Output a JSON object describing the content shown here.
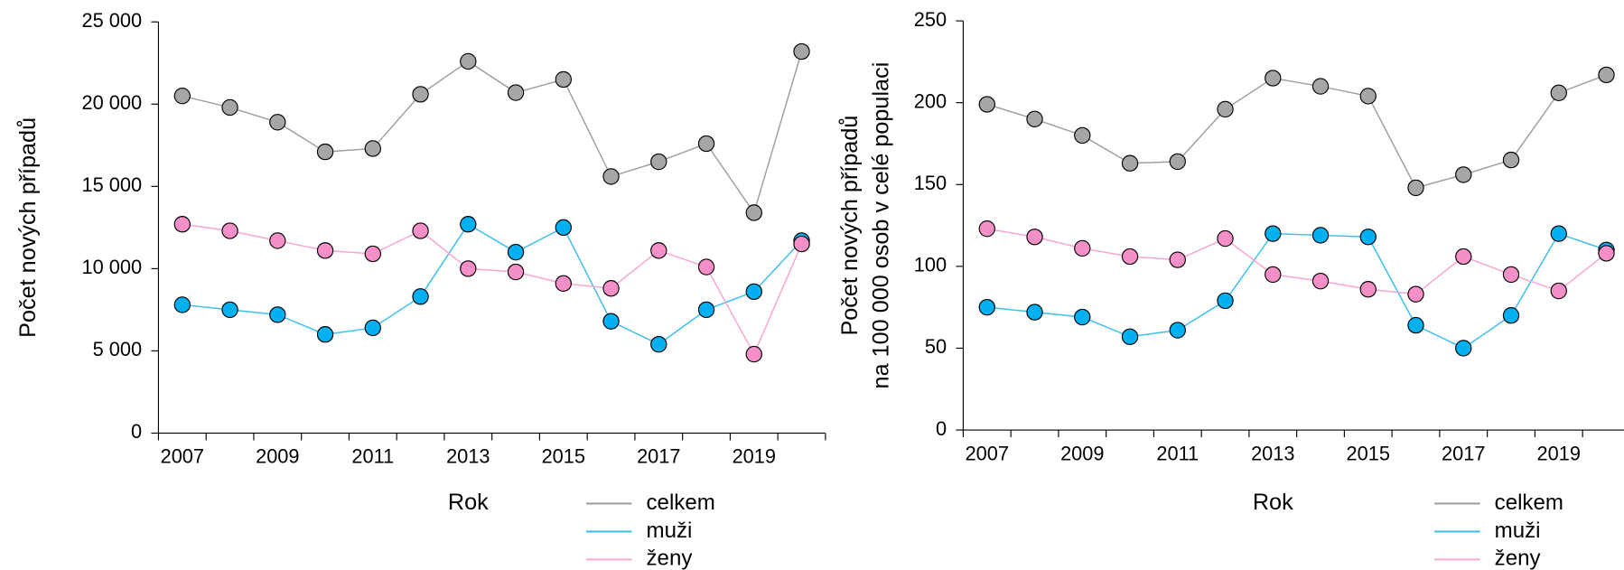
{
  "chart_data": [
    {
      "type": "line",
      "categories": [
        "2007",
        null,
        "2009",
        null,
        "2011",
        null,
        "2013",
        null,
        "2015",
        null,
        "2017",
        null,
        "2019",
        null
      ],
      "xlabel": "Rok",
      "ylabel": [
        "Počet nových případů"
      ],
      "ylim": [
        0,
        25000
      ],
      "yticks": [
        0,
        {
          "value": 5000,
          "label": "5 000"
        },
        {
          "value": 10000,
          "label": "10 000"
        },
        {
          "value": 15000,
          "label": "15 000"
        },
        {
          "value": 20000,
          "label": "20 000"
        },
        {
          "value": 25000,
          "label": "25 000"
        }
      ],
      "grid": false,
      "series": [
        {
          "name": "celkem",
          "color": "#a0a0a0",
          "marker_color": "#a6a6a6",
          "values": [
            20500,
            19800,
            18900,
            17100,
            17300,
            20600,
            22600,
            20700,
            21500,
            15600,
            16500,
            17600,
            13400,
            23200
          ]
        },
        {
          "name": "muži",
          "color": "#3cc0ec",
          "marker_color": "#00b0f0",
          "values": [
            7800,
            7500,
            7200,
            6000,
            6400,
            8300,
            12700,
            11000,
            12500,
            6800,
            5400,
            7500,
            8600,
            11700
          ]
        },
        {
          "name": "ženy",
          "color": "#f7a6d2",
          "marker_color": "#f58fc8",
          "values": [
            12700,
            12300,
            11700,
            11100,
            10900,
            12300,
            10000,
            9800,
            9100,
            8800,
            11100,
            10100,
            4800,
            11500
          ]
        }
      ]
    },
    {
      "type": "line",
      "categories": [
        "2007",
        null,
        "2009",
        null,
        "2011",
        null,
        "2013",
        null,
        "2015",
        null,
        "2017",
        null,
        "2019",
        null
      ],
      "xlabel": "Rok",
      "ylabel": [
        "Počet nových případů",
        "na 100 000 osob v celé populaci"
      ],
      "ylim": [
        0,
        250
      ],
      "yticks": [
        0,
        50,
        100,
        150,
        200,
        250
      ],
      "grid": false,
      "series": [
        {
          "name": "celkem",
          "color": "#a0a0a0",
          "marker_color": "#a6a6a6",
          "values": [
            199,
            190,
            180,
            163,
            164,
            196,
            215,
            210,
            204,
            148,
            156,
            165,
            206,
            217
          ]
        },
        {
          "name": "muži",
          "color": "#3cc0ec",
          "marker_color": "#00b0f0",
          "values": [
            75,
            72,
            69,
            57,
            61,
            79,
            120,
            119,
            118,
            64,
            50,
            70,
            120,
            110
          ]
        },
        {
          "name": "ženy",
          "color": "#f7a6d2",
          "marker_color": "#f58fc8",
          "values": [
            123,
            118,
            111,
            106,
            104,
            117,
            95,
            91,
            86,
            83,
            106,
            95,
            85,
            108
          ]
        }
      ]
    }
  ]
}
